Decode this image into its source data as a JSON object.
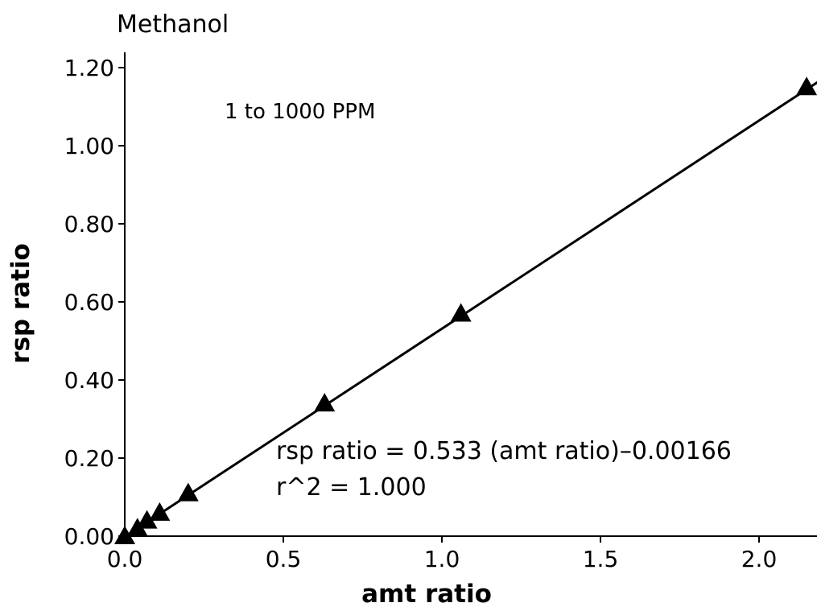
{
  "chart_data": {
    "type": "scatter",
    "title": "Methanol",
    "subtitle": "1 to 1000 PPM",
    "xlabel": "amt ratio",
    "ylabel": "rsp ratio",
    "xlim": [
      0,
      2.33
    ],
    "ylim": [
      0,
      1.25
    ],
    "x_ticks": [
      "0.0",
      "0.5",
      "1.0",
      "1.5",
      "2.0"
    ],
    "y_ticks": [
      "0.00",
      "0.20",
      "0.40",
      "0.60",
      "0.80",
      "1.00",
      "1.20"
    ],
    "grid": false,
    "marker": "triangle",
    "series": [
      {
        "x": [
          0.0,
          0.04,
          0.07,
          0.11,
          0.2,
          0.63,
          1.06,
          2.15
        ],
        "y": [
          0.0,
          0.02,
          0.04,
          0.06,
          0.11,
          0.34,
          0.57,
          1.15
        ]
      }
    ],
    "fit_line": {
      "slope": 0.533,
      "intercept": -0.00166,
      "x_range": [
        0,
        2.33
      ]
    },
    "equation": "rsp ratio = 0.533 (amt ratio)–0.00166",
    "r_squared": "r^2 = 1.000"
  }
}
